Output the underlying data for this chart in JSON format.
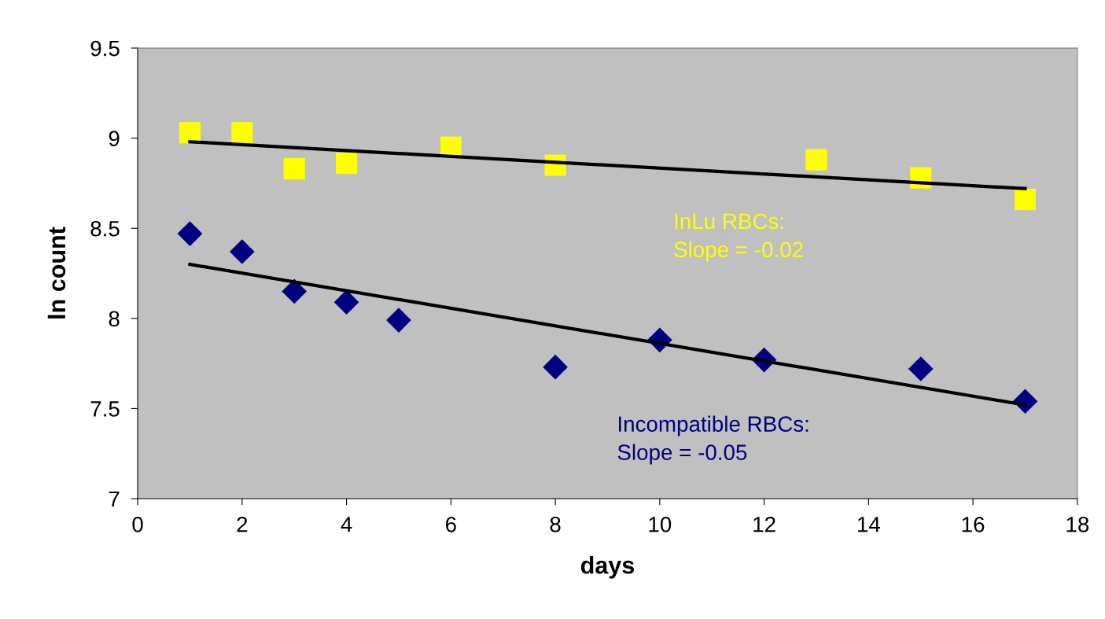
{
  "chart_data": {
    "type": "scatter",
    "xlabel": "days",
    "ylabel": "ln count",
    "xlim": [
      0,
      18
    ],
    "xticks": [
      0,
      2,
      4,
      6,
      8,
      10,
      12,
      14,
      16,
      18
    ],
    "ylim": [
      7,
      9.5
    ],
    "yticks": [
      7,
      7.5,
      8,
      8.5,
      9,
      9.5
    ],
    "grid": false,
    "legend": false,
    "series": [
      {
        "marker": "square",
        "color": "#ffff00",
        "x": [
          1,
          2,
          3,
          4,
          6,
          8,
          13,
          15,
          17
        ],
        "values": [
          9.03,
          9.03,
          8.83,
          8.86,
          8.95,
          8.85,
          8.88,
          8.78,
          8.66
        ]
      },
      {
        "marker": "diamond",
        "color": "#000080",
        "x": [
          1,
          2,
          3,
          4,
          5,
          8,
          10,
          12,
          15,
          17
        ],
        "values": [
          8.47,
          8.37,
          8.15,
          8.09,
          7.99,
          7.73,
          7.88,
          7.77,
          7.72,
          7.54
        ]
      },
      {
        "type": "line",
        "marker": "none",
        "color": "#000000",
        "x": [
          1,
          17
        ],
        "values": [
          8.98,
          8.72
        ]
      },
      {
        "type": "line",
        "marker": "none",
        "color": "#000000",
        "x": [
          1,
          17
        ],
        "values": [
          8.3,
          7.52
        ]
      }
    ],
    "annotations": [
      "InLu RBCs:\nSlope = -0.02",
      "Incompatible RBCs:\nSlope = -0.05"
    ]
  }
}
